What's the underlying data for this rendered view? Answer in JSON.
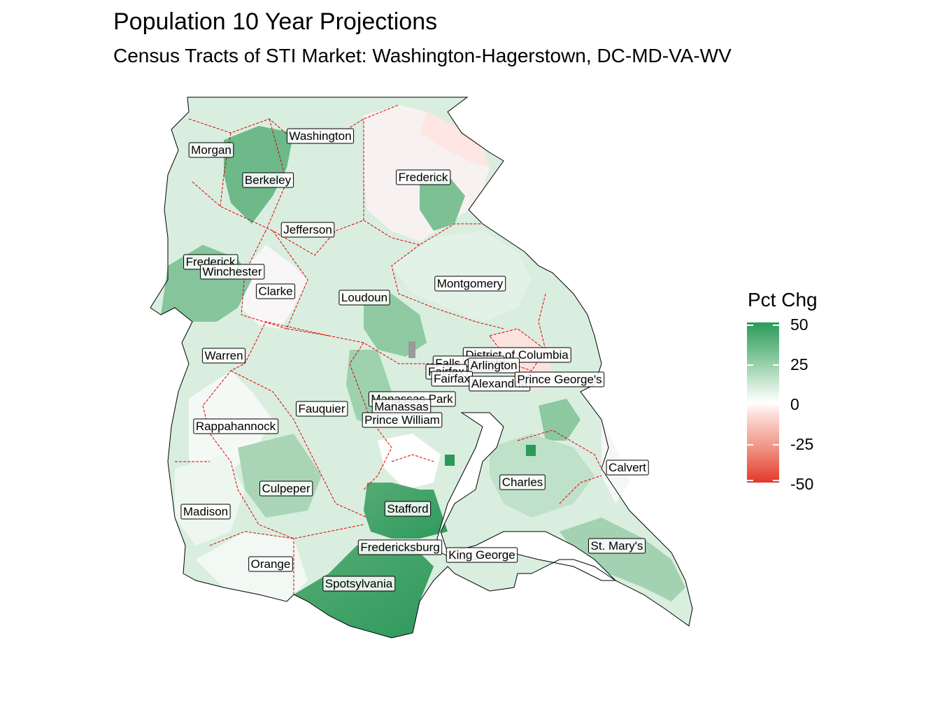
{
  "title": "Population 10 Year Projections",
  "subtitle": "Census Tracts of STI Market: Washington-Hagerstown, DC-MD-VA-WV",
  "legend": {
    "title": "Pct Chg",
    "ticks": [
      "50",
      "25",
      "0",
      "-25",
      "-50"
    ],
    "colors": {
      "high": "#2b9a5a",
      "mid": "#ffffff",
      "low": "#e1392b"
    }
  },
  "colors": {
    "county_border": "#e00000",
    "outline": "#000000",
    "strong_green": "#3f9e62",
    "medium_green": "#8bc79f",
    "light_green": "#d4ebdb",
    "pale": "#eef7f1",
    "pink": "#fde3e0"
  },
  "counties": [
    {
      "name": "Washington",
      "value": 5
    },
    {
      "name": "Morgan",
      "value": 8
    },
    {
      "name": "Berkeley",
      "value": 30
    },
    {
      "name": "Frederick",
      "value": 10
    },
    {
      "name": "Jefferson",
      "value": 18
    },
    {
      "name": "Frederick",
      "value": 25
    },
    {
      "name": "Winchester",
      "value": 12
    },
    {
      "name": "Clarke",
      "value": -8
    },
    {
      "name": "Montgomery",
      "value": 10
    },
    {
      "name": "Loudoun",
      "value": 22
    },
    {
      "name": "District of Columbia",
      "value": -5
    },
    {
      "name": "Falls Church",
      "value": 10
    },
    {
      "name": "Arlington",
      "value": 8
    },
    {
      "name": "Fairfax",
      "value": 12
    },
    {
      "name": "Fairfax",
      "value": 8
    },
    {
      "name": "Alexandria",
      "value": 10
    },
    {
      "name": "Prince George's",
      "value": 10
    },
    {
      "name": "Warren",
      "value": 6
    },
    {
      "name": "Manassas Park",
      "value": 12
    },
    {
      "name": "Manassas",
      "value": 8
    },
    {
      "name": "Fauquier",
      "value": 15
    },
    {
      "name": "Prince William",
      "value": 18
    },
    {
      "name": "Rappahannock",
      "value": 2
    },
    {
      "name": "Calvert",
      "value": 4
    },
    {
      "name": "Culpeper",
      "value": 20
    },
    {
      "name": "Charles",
      "value": 18
    },
    {
      "name": "Madison",
      "value": 4
    },
    {
      "name": "Stafford",
      "value": 35
    },
    {
      "name": "Fredericksburg",
      "value": 20
    },
    {
      "name": "King George",
      "value": 15
    },
    {
      "name": "St. Mary's",
      "value": 20
    },
    {
      "name": "Orange",
      "value": 6
    },
    {
      "name": "Spotsylvania",
      "value": 42
    }
  ]
}
